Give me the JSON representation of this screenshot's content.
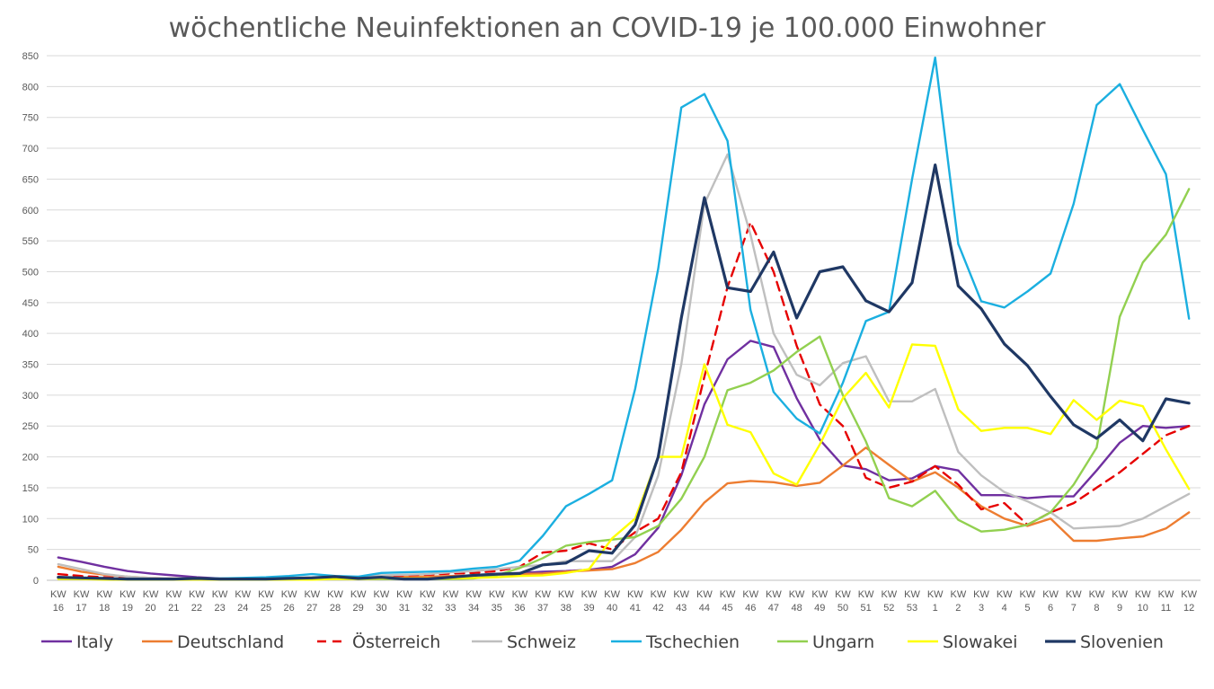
{
  "chart_data": {
    "type": "line",
    "title": "wöchentliche Neuinfektionen an COVID-19 je 100.000 Einwohner",
    "xlabel": "",
    "ylabel": "",
    "ylim": [
      0,
      850
    ],
    "yticks": [
      0,
      50,
      100,
      150,
      200,
      250,
      300,
      350,
      400,
      450,
      500,
      550,
      600,
      650,
      700,
      750,
      800,
      850
    ],
    "grid": true,
    "legend_position": "bottom",
    "categories": [
      [
        "KW",
        "16"
      ],
      [
        "KW",
        "17"
      ],
      [
        "KW",
        "18"
      ],
      [
        "KW",
        "19"
      ],
      [
        "KW",
        "20"
      ],
      [
        "KW",
        "21"
      ],
      [
        "KW",
        "22"
      ],
      [
        "KW",
        "23"
      ],
      [
        "KW",
        "24"
      ],
      [
        "KW",
        "25"
      ],
      [
        "KW",
        "26"
      ],
      [
        "KW",
        "27"
      ],
      [
        "KW",
        "28"
      ],
      [
        "KW",
        "29"
      ],
      [
        "KW",
        "30"
      ],
      [
        "KW",
        "31"
      ],
      [
        "KW",
        "32"
      ],
      [
        "KW",
        "33"
      ],
      [
        "KW",
        "34"
      ],
      [
        "KW",
        "35"
      ],
      [
        "KW",
        "36"
      ],
      [
        "KW",
        "37"
      ],
      [
        "KW",
        "38"
      ],
      [
        "KW",
        "39"
      ],
      [
        "KW",
        "40"
      ],
      [
        "KW",
        "41"
      ],
      [
        "KW",
        "42"
      ],
      [
        "KW",
        "43"
      ],
      [
        "KW",
        "44"
      ],
      [
        "KW",
        "45"
      ],
      [
        "KW",
        "46"
      ],
      [
        "KW",
        "47"
      ],
      [
        "KW",
        "48"
      ],
      [
        "KW",
        "49"
      ],
      [
        "KW",
        "50"
      ],
      [
        "KW",
        "51"
      ],
      [
        "KW",
        "52"
      ],
      [
        "KW",
        "53"
      ],
      [
        "KW",
        "1"
      ],
      [
        "KW",
        "2"
      ],
      [
        "KW",
        "3"
      ],
      [
        "KW",
        "4"
      ],
      [
        "KW",
        "5"
      ],
      [
        "KW",
        "6"
      ],
      [
        "KW",
        "7"
      ],
      [
        "KW",
        "8"
      ],
      [
        "KW",
        "9"
      ],
      [
        "KW",
        "10"
      ],
      [
        "KW",
        "11"
      ],
      [
        "KW",
        "12"
      ]
    ],
    "series": [
      {
        "name": "Italy",
        "color": "#7030A0",
        "dash": false,
        "values": [
          37,
          30,
          22,
          15,
          11,
          8,
          5,
          3,
          3,
          2,
          2,
          2,
          3,
          3,
          4,
          4,
          3,
          6,
          8,
          10,
          12,
          14,
          15,
          17,
          22,
          42,
          85,
          170,
          285,
          358,
          388,
          378,
          295,
          228,
          186,
          180,
          162,
          165,
          185,
          178,
          138,
          138,
          133,
          136,
          136,
          178,
          223,
          250,
          247,
          250
        ]
      },
      {
        "name": "Deutschland",
        "color": "#ED7D31",
        "dash": false,
        "values": [
          22,
          14,
          9,
          6,
          4,
          3,
          2,
          2,
          2,
          2,
          4,
          4,
          5,
          5,
          6,
          6,
          6,
          7,
          8,
          9,
          10,
          11,
          14,
          16,
          18,
          28,
          46,
          82,
          126,
          157,
          161,
          159,
          153,
          158,
          186,
          215,
          187,
          160,
          175,
          150,
          120,
          100,
          88,
          100,
          64,
          64,
          68,
          71,
          84,
          110
        ]
      },
      {
        "name": "Österreich",
        "color": "#E60000",
        "dash": true,
        "values": [
          10,
          7,
          5,
          3,
          3,
          2,
          2,
          2,
          2,
          2,
          2,
          4,
          5,
          5,
          7,
          8,
          9,
          11,
          12,
          15,
          22,
          45,
          48,
          60,
          50,
          78,
          100,
          175,
          330,
          475,
          580,
          500,
          380,
          285,
          250,
          166,
          150,
          160,
          185,
          155,
          115,
          125,
          90,
          110,
          125,
          150,
          175,
          205,
          235,
          250
        ]
      },
      {
        "name": "Schweiz",
        "color": "#BFBFBF",
        "dash": false,
        "values": [
          26,
          18,
          10,
          6,
          4,
          3,
          2,
          2,
          2,
          3,
          4,
          5,
          6,
          6,
          8,
          9,
          10,
          13,
          15,
          18,
          22,
          25,
          31,
          31,
          31,
          70,
          170,
          350,
          610,
          690,
          560,
          400,
          333,
          316,
          352,
          363,
          290,
          290,
          310,
          208,
          170,
          143,
          128,
          110,
          84,
          86,
          88,
          100,
          120,
          140
        ]
      },
      {
        "name": "Tschechien",
        "color": "#1BAFE0",
        "dash": false,
        "values": [
          5,
          3,
          2,
          2,
          2,
          2,
          3,
          3,
          4,
          5,
          7,
          10,
          7,
          6,
          12,
          13,
          14,
          15,
          19,
          22,
          32,
          72,
          120,
          140,
          162,
          310,
          505,
          766,
          788,
          712,
          438,
          305,
          262,
          238,
          320,
          420,
          435,
          650,
          847,
          545,
          452,
          442,
          468,
          497,
          610,
          770,
          804,
          730,
          658,
          424
        ]
      },
      {
        "name": "Ungarn",
        "color": "#92D050",
        "dash": false,
        "values": [
          3,
          2,
          2,
          2,
          2,
          2,
          2,
          2,
          2,
          2,
          2,
          2,
          2,
          2,
          2,
          2,
          2,
          2,
          3,
          8,
          20,
          36,
          56,
          62,
          66,
          70,
          88,
          132,
          200,
          308,
          320,
          340,
          370,
          395,
          300,
          225,
          133,
          120,
          145,
          98,
          79,
          82,
          90,
          110,
          155,
          215,
          427,
          515,
          560,
          634
        ]
      },
      {
        "name": "Slowakei",
        "color": "#FFFF00",
        "dash": false,
        "values": [
          2,
          2,
          1,
          1,
          1,
          1,
          1,
          1,
          1,
          1,
          1,
          1,
          2,
          2,
          3,
          3,
          3,
          3,
          4,
          5,
          7,
          8,
          12,
          18,
          68,
          100,
          200,
          200,
          350,
          252,
          240,
          173,
          155,
          220,
          295,
          336,
          280,
          382,
          380,
          277,
          242,
          247,
          247,
          237,
          292,
          260,
          291,
          282,
          212,
          148
        ]
      },
      {
        "name": "Slovenien",
        "color": "#1F3864",
        "dash": false,
        "values": [
          5,
          4,
          3,
          2,
          2,
          2,
          3,
          2,
          2,
          2,
          3,
          4,
          6,
          3,
          5,
          2,
          2,
          5,
          8,
          10,
          11,
          25,
          28,
          48,
          44,
          90,
          200,
          425,
          620,
          474,
          468,
          532,
          425,
          500,
          508,
          453,
          435,
          482,
          673,
          477,
          440,
          383,
          348,
          298,
          252,
          230,
          260,
          226,
          294,
          287
        ]
      }
    ]
  }
}
